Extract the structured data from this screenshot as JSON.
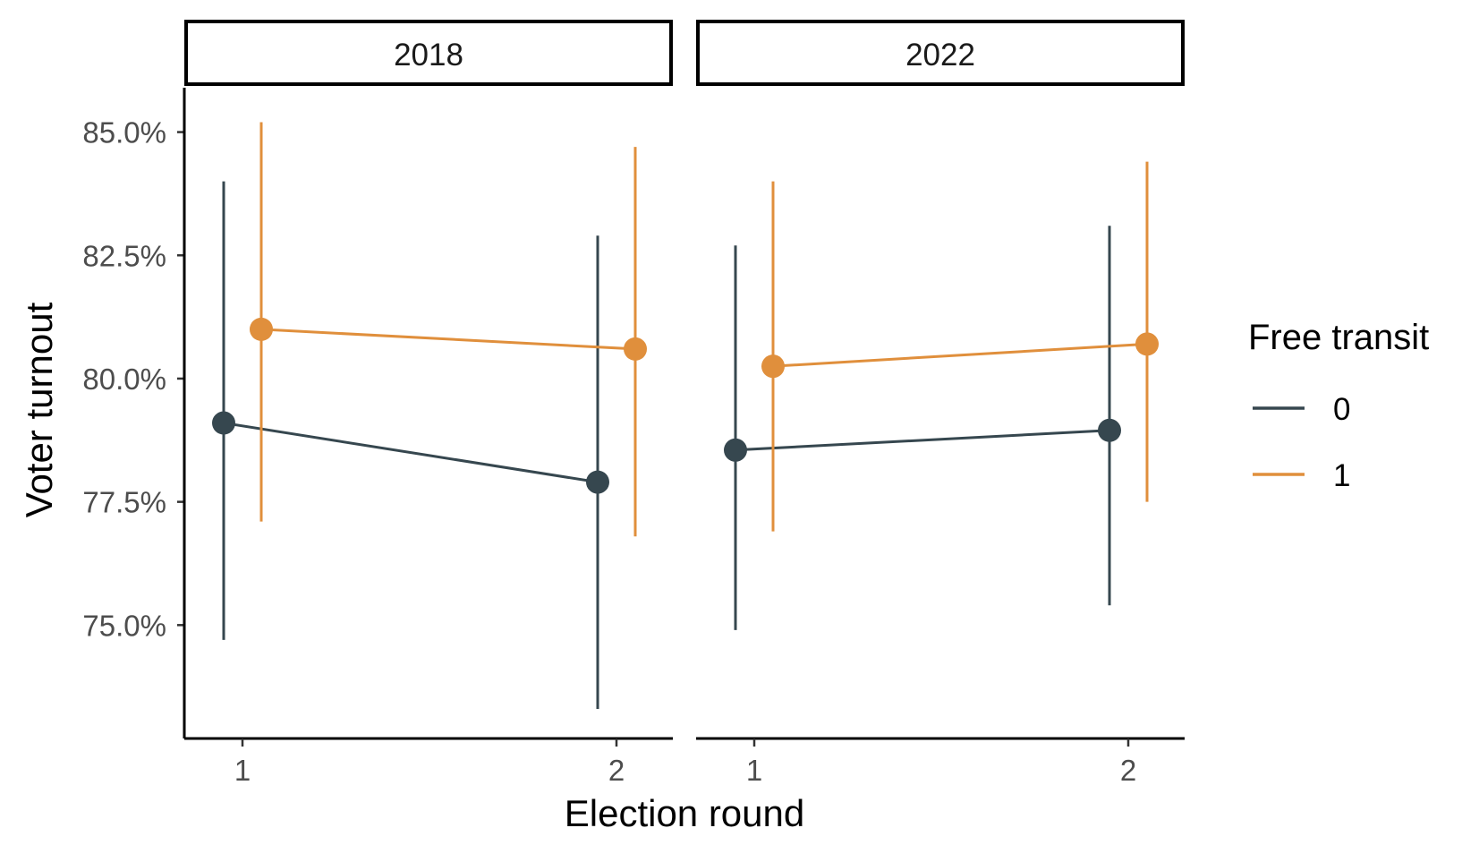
{
  "chart_data": {
    "type": "line",
    "xlabel": "Election round",
    "ylabel": "Voter turnout",
    "x_ticks": [
      "1",
      "2"
    ],
    "y_ticks": [
      "75.0%",
      "77.5%",
      "80.0%",
      "82.5%",
      "85.0%"
    ],
    "y_tick_values": [
      75.0,
      77.5,
      80.0,
      82.5,
      85.0
    ],
    "ylim": [
      72.7,
      85.9
    ],
    "error_bars": true,
    "legend": {
      "title": "Free transit",
      "position": "right"
    },
    "series_colors": {
      "0": "#36474f",
      "1": "#e08f3c"
    },
    "facets": [
      {
        "label": "2018",
        "series": [
          {
            "name": "0",
            "x": [
              1,
              2
            ],
            "y": [
              79.1,
              77.9
            ],
            "lower": [
              74.7,
              73.3
            ],
            "upper": [
              84.0,
              82.9
            ]
          },
          {
            "name": "1",
            "x": [
              1,
              2
            ],
            "y": [
              81.0,
              80.6
            ],
            "lower": [
              77.1,
              76.8
            ],
            "upper": [
              85.2,
              84.7
            ]
          }
        ]
      },
      {
        "label": "2022",
        "series": [
          {
            "name": "0",
            "x": [
              1,
              2
            ],
            "y": [
              78.55,
              78.95
            ],
            "lower": [
              74.9,
              75.4
            ],
            "upper": [
              82.7,
              83.1
            ]
          },
          {
            "name": "1",
            "x": [
              1,
              2
            ],
            "y": [
              80.25,
              80.7
            ],
            "lower": [
              76.9,
              77.5
            ],
            "upper": [
              84.0,
              84.4
            ]
          }
        ]
      }
    ]
  }
}
